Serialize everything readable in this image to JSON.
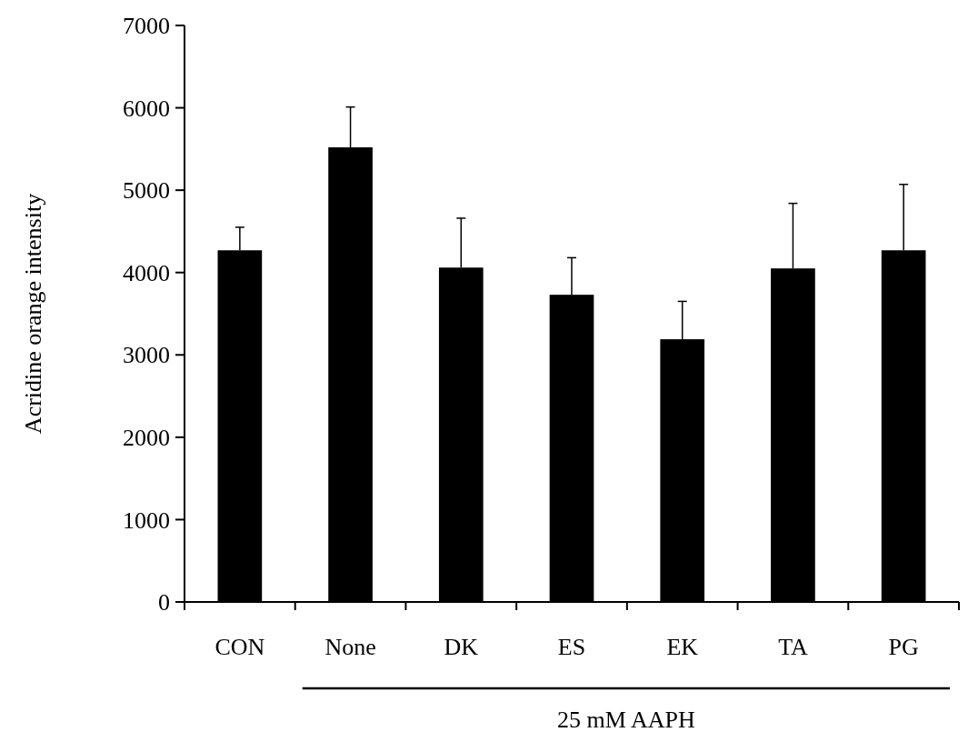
{
  "chart_data": {
    "type": "bar",
    "ylabel": "Acridine orange intensity",
    "categories": [
      "CON",
      "None",
      "DK",
      "ES",
      "EK",
      "TA",
      "PG"
    ],
    "values": [
      4270,
      5520,
      4060,
      3730,
      3190,
      4050,
      4270
    ],
    "errors": [
      280,
      490,
      600,
      450,
      460,
      790,
      800
    ],
    "color": "#000000",
    "ylim": [
      0,
      7000
    ],
    "yticks": [
      0,
      1000,
      2000,
      3000,
      4000,
      5000,
      6000,
      7000
    ],
    "annotations": [
      "25 mM AAPH"
    ]
  }
}
